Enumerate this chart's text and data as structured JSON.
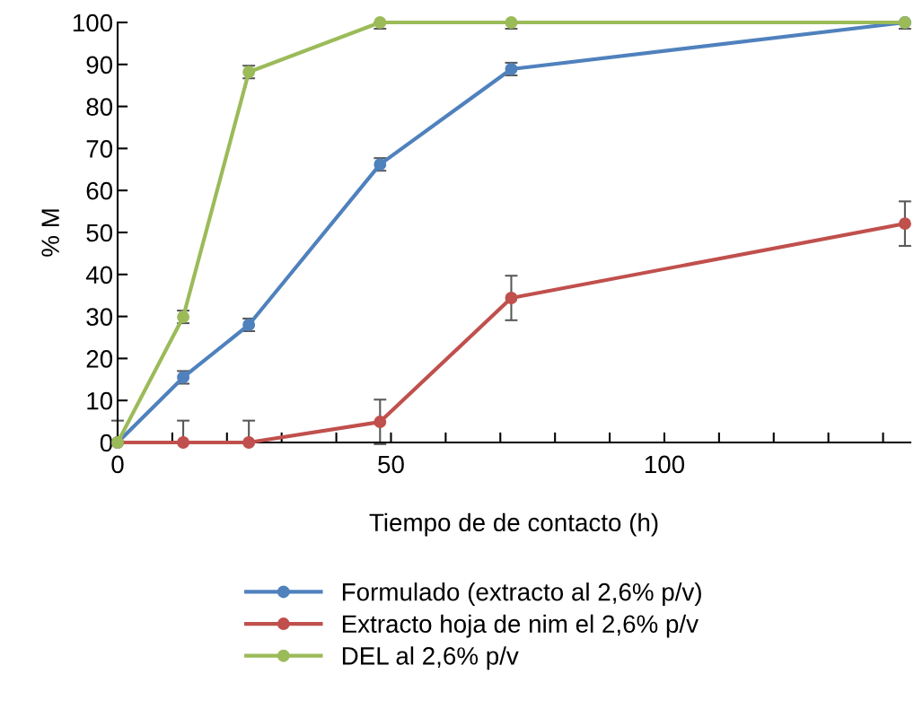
{
  "chart_data": {
    "type": "line",
    "xlabel": "Tiempo de de contacto (h)",
    "ylabel": "% M",
    "x": [
      0,
      12,
      24,
      48,
      72,
      144
    ],
    "series": [
      {
        "name": "Formulado (extracto al 2,6% p/v)",
        "color": "#4f81bd",
        "values": [
          0,
          15.5,
          28,
          66.2,
          88.9,
          100
        ],
        "errors": [
          null,
          1.5,
          1.5,
          1.5,
          1.5,
          null
        ]
      },
      {
        "name": "Extracto hoja de nim el 2,6% p/v",
        "color": "#c0504d",
        "values": [
          0,
          0,
          0,
          4.9,
          34.4,
          52.1
        ],
        "errors": [
          [
            0,
            5.2
          ],
          [
            0,
            5.2
          ],
          [
            0,
            5.2
          ],
          5.3,
          5.3,
          5.3
        ]
      },
      {
        "name": "DEL al 2,6% p/v",
        "color": "#9bbb59",
        "values": [
          0,
          29.9,
          88.2,
          100,
          100,
          100
        ],
        "errors": [
          null,
          1.5,
          1.5,
          [
            98.5,
            100
          ],
          [
            98.5,
            100
          ],
          [
            98.5,
            100
          ]
        ]
      }
    ],
    "xlim": [
      0,
      145
    ],
    "ylim": [
      0,
      100
    ],
    "xticks": [
      0,
      {
        "value": 10,
        "label": null
      },
      {
        "value": 20,
        "label": null
      },
      {
        "value": 30,
        "label": null
      },
      {
        "value": 40,
        "label": null
      },
      50,
      {
        "value": 60,
        "label": null
      },
      {
        "value": 70,
        "label": null
      },
      {
        "value": 80,
        "label": null
      },
      {
        "value": 90,
        "label": null
      },
      100,
      {
        "value": 110,
        "label": null
      },
      {
        "value": 120,
        "label": null
      },
      {
        "value": 130,
        "label": null
      },
      {
        "value": 140,
        "label": null
      }
    ],
    "yticks": [
      0,
      10,
      20,
      30,
      40,
      50,
      60,
      70,
      80,
      90,
      100
    ],
    "grid": false,
    "legend": "bottom",
    "marker": "circle",
    "line_style": "solid"
  }
}
